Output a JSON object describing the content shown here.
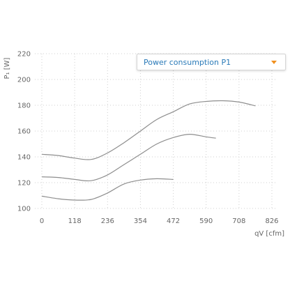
{
  "selector": {
    "label": "Power consumption P1",
    "arrow_icon": "chevron-down-icon",
    "arrow_color": "#f0901e",
    "text_color": "#2a7ab8"
  },
  "chart_data": {
    "type": "line",
    "title": "",
    "ylabel": "P₁ [W]",
    "xlabel": "qV [cfm]",
    "xlim": [
      0,
      826
    ],
    "ylim": [
      100,
      220
    ],
    "x_ticks": [
      "0",
      "118",
      "236",
      "354",
      "472",
      "590",
      "708",
      "826"
    ],
    "y_ticks": [
      "100",
      "120",
      "140",
      "160",
      "180",
      "200",
      "220"
    ],
    "grid": true,
    "line_color": "#8e8e8e",
    "series": [
      {
        "points": [
          [
            0,
            142
          ],
          [
            59,
            141
          ],
          [
            118,
            139
          ],
          [
            177,
            138
          ],
          [
            236,
            143
          ],
          [
            295,
            151
          ],
          [
            354,
            160
          ],
          [
            413,
            169
          ],
          [
            472,
            175
          ],
          [
            531,
            181
          ],
          [
            590,
            183
          ],
          [
            649,
            183.5
          ],
          [
            708,
            182.5
          ],
          [
            767,
            179.5
          ]
        ]
      },
      {
        "points": [
          [
            0,
            124.5
          ],
          [
            59,
            124
          ],
          [
            118,
            122.5
          ],
          [
            177,
            121.5
          ],
          [
            236,
            126
          ],
          [
            295,
            134
          ],
          [
            354,
            142
          ],
          [
            413,
            150
          ],
          [
            472,
            155
          ],
          [
            531,
            157.5
          ],
          [
            590,
            155.5
          ],
          [
            625,
            154.5
          ]
        ]
      },
      {
        "points": [
          [
            0,
            109.5
          ],
          [
            59,
            107.5
          ],
          [
            118,
            106.5
          ],
          [
            177,
            107
          ],
          [
            236,
            112
          ],
          [
            295,
            119
          ],
          [
            354,
            122
          ],
          [
            413,
            123
          ],
          [
            472,
            122.5
          ]
        ]
      }
    ]
  }
}
